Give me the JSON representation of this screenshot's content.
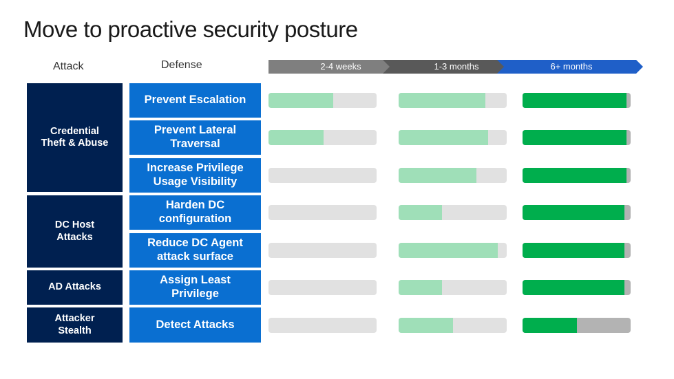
{
  "title": "Move to proactive security posture",
  "headers": {
    "attack": "Attack",
    "defense": "Defense"
  },
  "timeline": [
    {
      "label": "2-4 weeks",
      "color": "#7f7f7f"
    },
    {
      "label": "1-3 months",
      "color": "#595959"
    },
    {
      "label": "6+ months",
      "color": "#1f5fc8"
    }
  ],
  "attacks": [
    {
      "label": "Credential\nTheft & Abuse"
    },
    {
      "label": "DC Host\nAttacks"
    },
    {
      "label": "AD Attacks"
    },
    {
      "label": "Attacker\nStealth"
    }
  ],
  "defenses": [
    {
      "label": "Prevent Escalation",
      "progress": [
        0.6,
        0.8,
        0.96
      ]
    },
    {
      "label": "Prevent Lateral\nTraversal",
      "progress": [
        0.51,
        0.83,
        0.96
      ]
    },
    {
      "label": "Increase Privilege\nUsage Visibility",
      "progress": [
        0.0,
        0.72,
        0.96
      ]
    },
    {
      "label": "Harden DC\nconfiguration",
      "progress": [
        0.0,
        0.4,
        0.94
      ]
    },
    {
      "label": "Reduce DC Agent\nattack surface",
      "progress": [
        0.0,
        0.92,
        0.94
      ]
    },
    {
      "label": "Assign Least\nPrivilege",
      "progress": [
        0.0,
        0.4,
        0.94
      ]
    },
    {
      "label": "Detect Attacks",
      "progress": [
        0.0,
        0.5,
        0.5
      ]
    }
  ]
}
